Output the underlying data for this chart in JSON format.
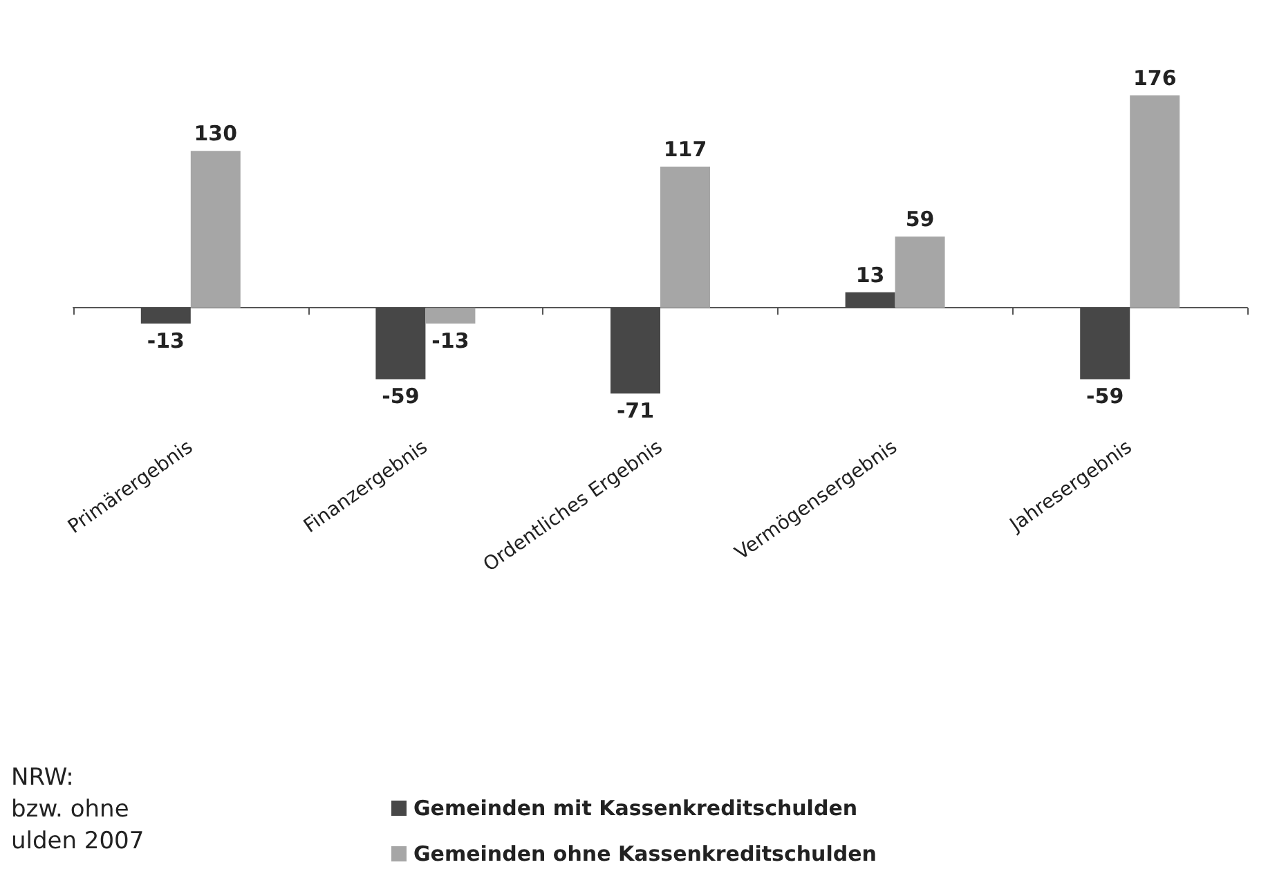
{
  "chart_data": {
    "type": "bar",
    "categories": [
      "Primärergebnis",
      "Finanzergebnis",
      "Ordentliches Ergebnis",
      "Vermögensergebnis",
      "Jahresergebnis"
    ],
    "series": [
      {
        "name": "Gemeinden mit Kassenkreditschulden",
        "color": "#474747",
        "values": [
          -13,
          -59,
          -71,
          13,
          -59
        ]
      },
      {
        "name": "Gemeinden ohne Kassenkreditschulden",
        "color": "#a6a6a6",
        "values": [
          130,
          -13,
          117,
          59,
          176
        ]
      }
    ],
    "data_labels": true,
    "legend": "bottom",
    "grid": false,
    "annotations": [
      "NRW:\nbzw. ohne\nulden 2007"
    ]
  }
}
